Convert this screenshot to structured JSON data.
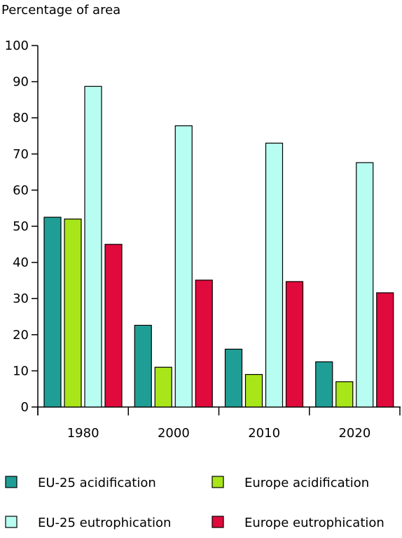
{
  "chart_data": {
    "type": "bar",
    "ylabel": "Percentage of area",
    "xlabel": "",
    "title": "",
    "ylim": [
      0,
      100
    ],
    "yticks": [
      0,
      10,
      20,
      30,
      40,
      50,
      60,
      70,
      80,
      90,
      100
    ],
    "categories": [
      "1980",
      "2000",
      "2010",
      "2020"
    ],
    "grid": false,
    "legend_position": "bottom",
    "series": [
      {
        "name": "EU-25 acidification",
        "color": "#1f9e96",
        "values": [
          52.5,
          22.6,
          16.0,
          12.5
        ]
      },
      {
        "name": "Europe acidification",
        "color": "#a8e619",
        "values": [
          52.0,
          11.0,
          9.0,
          7.0
        ]
      },
      {
        "name": "EU-25 eutrophication",
        "color": "#b8fdf1",
        "values": [
          88.7,
          77.8,
          73.0,
          67.6
        ]
      },
      {
        "name": "Europe eutrophication",
        "color": "#e10a3c",
        "values": [
          45.0,
          35.1,
          34.7,
          31.6
        ]
      }
    ]
  }
}
